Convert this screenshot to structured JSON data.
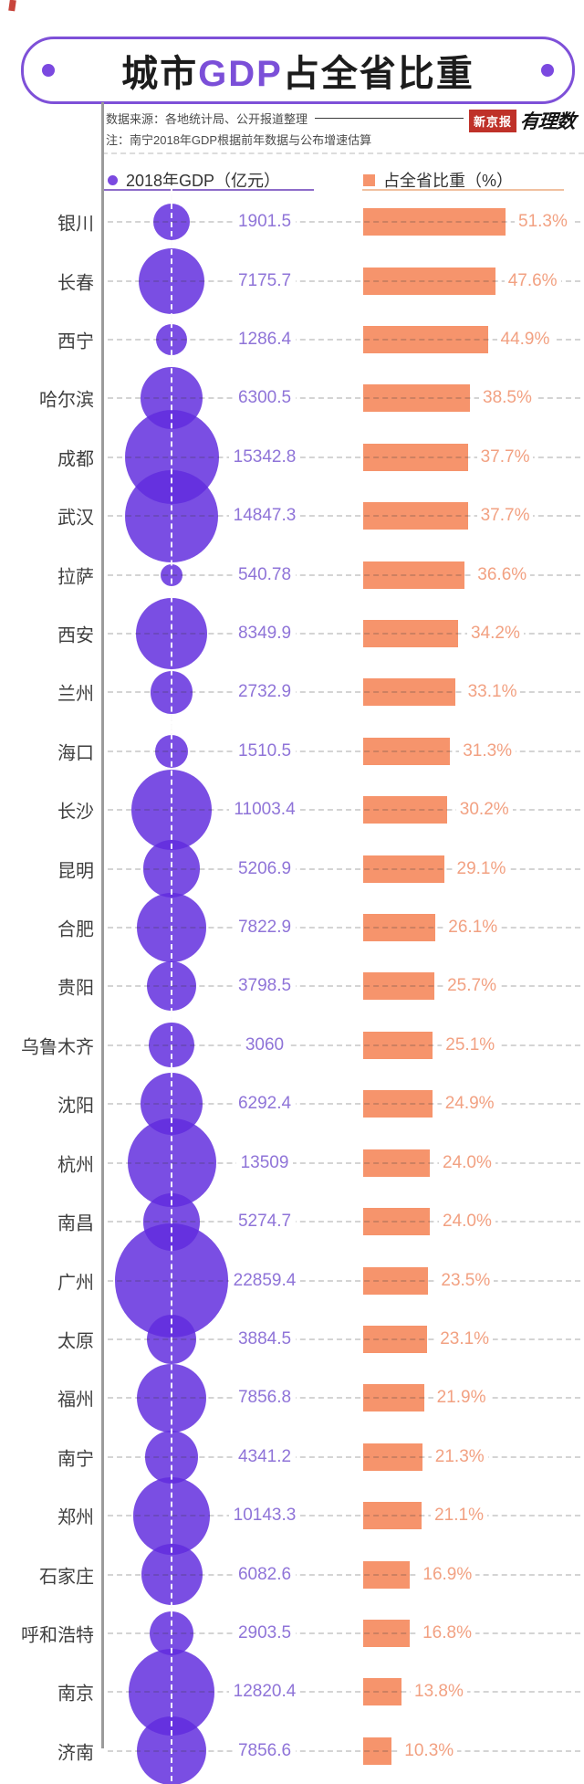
{
  "title": {
    "prefix": "城市",
    "highlight": "GDP",
    "suffix": "占全省比重"
  },
  "source": {
    "label": "数据来源：各地统计局、公开报道整理",
    "note": "注：南宁2018年GDP根据前年数据与公布增速估算"
  },
  "branding": {
    "badge": "新京报",
    "wordmark": "有理数"
  },
  "legend": {
    "gdp_label": "2018年GDP（亿元）",
    "share_label": "占全省比重（%）"
  },
  "colors": {
    "purple_accent": "#7b4fd8",
    "bubble_fill": "rgba(96,44,222,0.84)",
    "bar_fill": "#f6946c",
    "gdp_text": "#8f74d8",
    "pct_text": "#f2a182",
    "badge_red": "#bf3129"
  },
  "chart_data": {
    "type": "bar",
    "variant": "bubble-size (GDP) + horizontal bar (share of province)",
    "title": "城市GDP占全省比重",
    "legend_position": "top",
    "grid": "dashed row leaders",
    "categories": [
      "银川",
      "长春",
      "西宁",
      "哈尔滨",
      "成都",
      "武汉",
      "拉萨",
      "西安",
      "兰州",
      "海口",
      "长沙",
      "昆明",
      "合肥",
      "贵阳",
      "乌鲁木齐",
      "沈阳",
      "杭州",
      "南昌",
      "广州",
      "太原",
      "福州",
      "南宁",
      "郑州",
      "石家庄",
      "呼和浩特",
      "南京",
      "济南"
    ],
    "series": [
      {
        "name": "2018年GDP（亿元）",
        "values": [
          1901.5,
          7175.7,
          1286.4,
          6300.5,
          15342.8,
          14847.3,
          540.78,
          8349.9,
          2732.9,
          1510.5,
          11003.4,
          5206.9,
          7822.9,
          3798.5,
          3060,
          6292.4,
          13509,
          5274.7,
          22859.4,
          3884.5,
          7856.8,
          4341.2,
          10143.3,
          6082.6,
          2903.5,
          12820.4,
          7856.6
        ]
      },
      {
        "name": "占全省比重（%）",
        "values": [
          51.3,
          47.6,
          44.9,
          38.5,
          37.7,
          37.7,
          36.6,
          34.2,
          33.1,
          31.3,
          30.2,
          29.1,
          26.1,
          25.7,
          25.1,
          24.9,
          24.0,
          24.0,
          23.5,
          23.1,
          21.9,
          21.3,
          21.1,
          16.9,
          16.8,
          13.8,
          10.3
        ]
      }
    ],
    "share_axis_range": [
      0,
      51.3
    ]
  }
}
